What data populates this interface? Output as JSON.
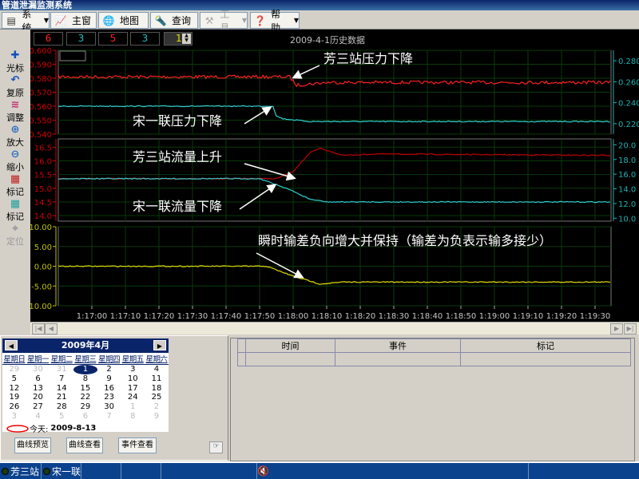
{
  "window": {
    "title": "管道泄漏监测系统"
  },
  "menu": [
    {
      "label": "系统",
      "icon": "console-icon",
      "dropdown": true
    },
    {
      "label": "主窗",
      "icon": "chart-icon"
    },
    {
      "label": "地图",
      "icon": "globe-icon"
    },
    {
      "label": "查询",
      "icon": "flashlight-icon"
    },
    {
      "label": "工具",
      "icon": "hammer-icon",
      "dropdown": true,
      "disabled": true
    },
    {
      "label": "帮助",
      "icon": "help-icon",
      "dropdown": true
    }
  ],
  "tools": [
    {
      "label": "光标",
      "icon": "cross-icon"
    },
    {
      "label": "复原",
      "icon": "undo-icon"
    },
    {
      "label": "调整",
      "icon": "adjust-icon"
    },
    {
      "label": "放大",
      "icon": "zoom-in-icon"
    },
    {
      "label": "缩小",
      "icon": "zoom-out-icon"
    },
    {
      "label": "标记",
      "icon": "mark-red-icon"
    },
    {
      "label": "标记",
      "icon": "mark-cyan-icon"
    },
    {
      "label": "定位",
      "icon": "locate-icon",
      "disabled": true
    }
  ],
  "counters": [
    {
      "value": "6",
      "color": "#ff2020"
    },
    {
      "value": "3",
      "color": "#20c0c0"
    },
    {
      "value": "5",
      "color": "#ff2020"
    },
    {
      "value": "3",
      "color": "#20c0c0"
    }
  ],
  "spinner": {
    "value": "1"
  },
  "chart_data": {
    "type": "line",
    "title": "2009-4-1历史数据",
    "x_ticks": [
      "1:17:00",
      "1:17:10",
      "1:17:20",
      "1:17:30",
      "1:17:40",
      "1:17:50",
      "1:18:00",
      "1:18:10",
      "1:18:20",
      "1:18:30",
      "1:18:40",
      "1:18:50",
      "1:19:00",
      "1:19:10",
      "1:19:20",
      "1:19:30"
    ],
    "grid": true,
    "panels": [
      {
        "left_axis": {
          "ticks": [
            "0.600",
            "0.590",
            "0.580",
            "0.570",
            "0.560",
            "0.550",
            "0.540"
          ],
          "range": [
            0.54,
            0.6
          ],
          "color": "#d00000"
        },
        "right_axis": {
          "ticks": [
            "0.280",
            "0.260",
            "0.240",
            "0.220"
          ],
          "range": [
            0.21,
            0.29
          ],
          "color": "#20b0b0"
        },
        "series": [
          {
            "color": "#ff2020",
            "points": [
              [
                "1:16:50",
                0.581
              ],
              [
                "1:17:59",
                0.581
              ],
              [
                "1:18:01",
                0.575
              ],
              [
                "1:18:10",
                0.577
              ],
              [
                "1:19:35",
                0.577
              ]
            ]
          },
          {
            "color": "#30d0d0",
            "points": [
              [
                "1:16:50",
                0.56
              ],
              [
                "1:17:54",
                0.56
              ],
              [
                "1:17:55",
                0.553
              ],
              [
                "1:17:57",
                0.551
              ],
              [
                "1:18:05",
                0.549
              ],
              [
                "1:19:35",
                0.549
              ]
            ]
          }
        ],
        "annotations": [
          "芳三站压力下降",
          "宋一联压力下降"
        ]
      },
      {
        "left_axis": {
          "ticks": [
            "16.5",
            "16.0",
            "15.5",
            "15.0",
            "14.5",
            "14.0"
          ],
          "range": [
            13.8,
            16.8
          ],
          "color": "#d00000"
        },
        "right_axis": {
          "ticks": [
            "20.0",
            "18.0",
            "16.0",
            "14.0",
            "12.0",
            "10.0"
          ],
          "range": [
            9.6,
            20.8
          ],
          "color": "#20b0b0"
        },
        "series": [
          {
            "color": "#c00000",
            "points": [
              [
                "1:16:50",
                15.35
              ],
              [
                "1:17:55",
                15.35
              ],
              [
                "1:18:00",
                15.6
              ],
              [
                "1:18:05",
                16.3
              ],
              [
                "1:18:08",
                16.45
              ],
              [
                "1:18:15",
                16.2
              ],
              [
                "1:18:25",
                16.25
              ],
              [
                "1:19:35",
                16.2
              ]
            ]
          },
          {
            "color": "#30d0d0",
            "points": [
              [
                "1:16:50",
                15.35
              ],
              [
                "1:17:50",
                15.35
              ],
              [
                "1:17:58",
                15.0
              ],
              [
                "1:18:05",
                14.6
              ],
              [
                "1:18:10",
                14.5
              ],
              [
                "1:19:35",
                14.5
              ]
            ]
          }
        ],
        "annotations": [
          "芳三站流量上升",
          "宋一联流量下降"
        ]
      },
      {
        "left_axis": {
          "ticks": [
            "10.00",
            "5.00",
            "0.00",
            "-5.00",
            "-10.00"
          ],
          "range": [
            -10,
            10
          ],
          "color": "#c0c000"
        },
        "series": [
          {
            "color": "#e0e000",
            "points": [
              [
                "1:16:50",
                0
              ],
              [
                "1:17:52",
                0
              ],
              [
                "1:18:00",
                -2.5
              ],
              [
                "1:18:08",
                -4.5
              ],
              [
                "1:18:15",
                -4.0
              ],
              [
                "1:19:35",
                -4.0
              ]
            ]
          }
        ],
        "annotations": [
          "瞬时输差负向增大并保持（输差为负表示输多接少）"
        ]
      }
    ]
  },
  "calendar": {
    "title": "2009年4月",
    "weekdays": [
      "星期日",
      "星期一",
      "星期二",
      "星期三",
      "星期四",
      "星期五",
      "星期六"
    ],
    "weeks": [
      [
        "29",
        "30",
        "31",
        "1",
        "2",
        "3",
        "4"
      ],
      [
        "5",
        "6",
        "7",
        "8",
        "9",
        "10",
        "11"
      ],
      [
        "12",
        "13",
        "14",
        "15",
        "16",
        "17",
        "18"
      ],
      [
        "19",
        "20",
        "21",
        "22",
        "23",
        "24",
        "25"
      ],
      [
        "26",
        "27",
        "28",
        "29",
        "30",
        "1",
        "2"
      ],
      [
        "3",
        "4",
        "5",
        "6",
        "7",
        "8",
        "9"
      ]
    ],
    "selected": "1",
    "today_label": "今天:",
    "today": "2009-8-13"
  },
  "buttons": {
    "preview": "曲线预览",
    "view": "曲线查看",
    "events": "事件查看"
  },
  "events_table": {
    "columns": [
      "时间",
      "事件",
      "标记"
    ],
    "rows": []
  },
  "status": {
    "items": [
      "芳三站",
      "宋一联"
    ],
    "sound_icon": "speaker-muted-icon"
  }
}
